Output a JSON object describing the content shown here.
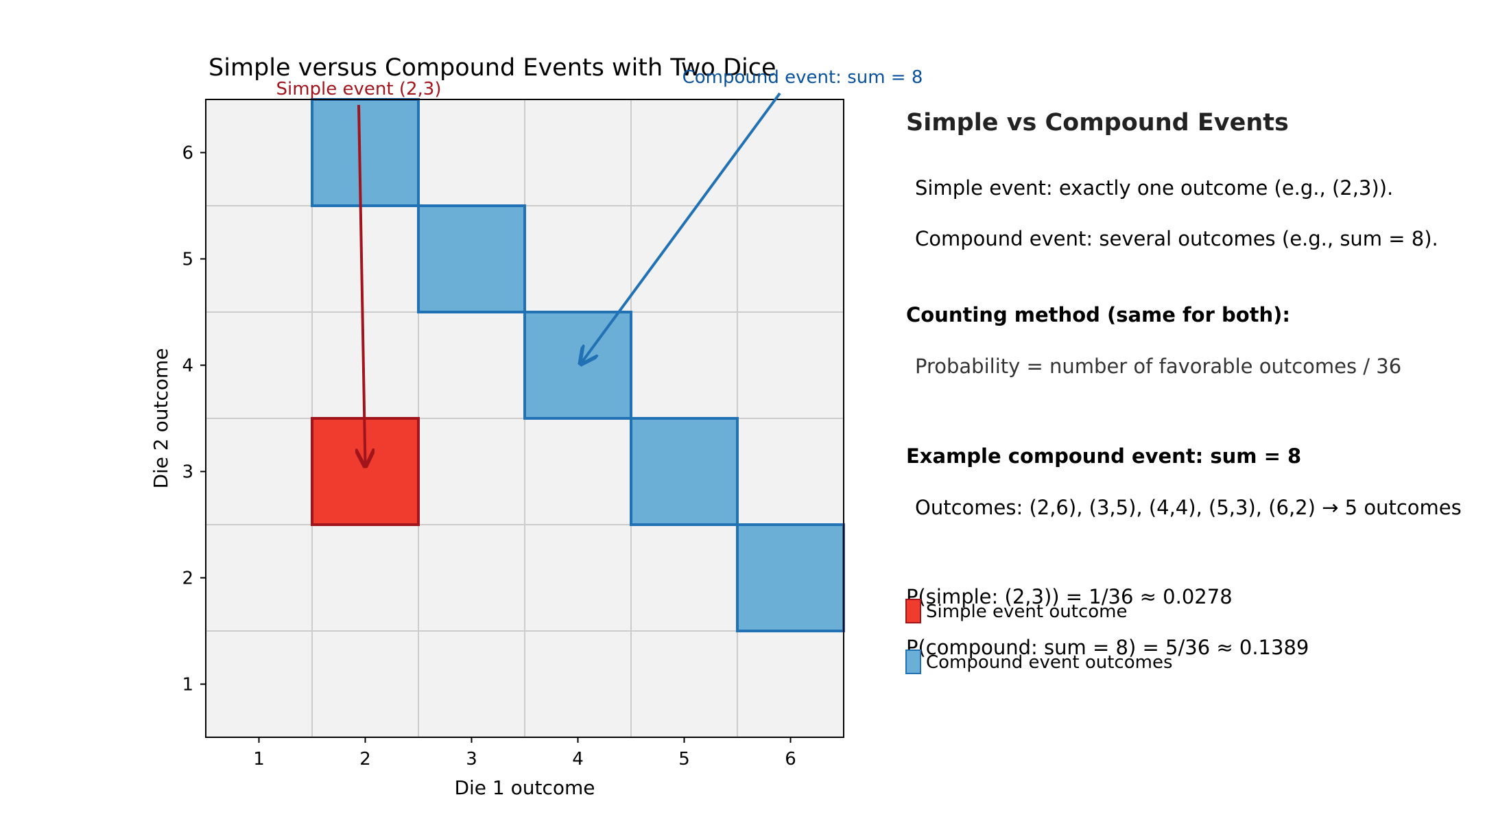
{
  "chart_data": {
    "type": "heatmap",
    "title": "Simple versus Compound Events with Two Dice",
    "xlabel": "Die 1 outcome",
    "ylabel": "Die 2 outcome",
    "x_ticks": [
      "1",
      "2",
      "3",
      "4",
      "5",
      "6"
    ],
    "y_ticks": [
      "1",
      "2",
      "3",
      "4",
      "5",
      "6"
    ],
    "xlim": [
      0.5,
      6.5
    ],
    "ylim": [
      0.5,
      6.5
    ],
    "grid": true,
    "simple_event": {
      "name": "Simple event outcome",
      "color": "#f03b2f",
      "edge_color": "#a1141c",
      "cells": [
        [
          2,
          3
        ]
      ]
    },
    "compound_event": {
      "name": "Compound event outcomes",
      "color": "#6baed6",
      "edge_color": "#2171b5",
      "cells": [
        [
          2,
          6
        ],
        [
          3,
          5
        ],
        [
          4,
          4
        ],
        [
          5,
          3
        ],
        [
          6,
          2
        ]
      ]
    },
    "annotations": [
      {
        "text": "Simple event (2,3)",
        "target": [
          2,
          3
        ],
        "color": "#a1141c"
      },
      {
        "text": "Compound event: sum = 8",
        "target": [
          4,
          4
        ],
        "color": "#08519c"
      }
    ],
    "legend": {
      "placement": "right-bottom"
    }
  },
  "panel": {
    "heading": "Simple vs Compound Events",
    "simple_def": "Simple event: exactly one outcome (e.g., (2,3)).",
    "compound_def": "Compound event: several outcomes (e.g., sum = 8).",
    "counting_heading": "Counting method (same for both):",
    "counting_formula": "Probability = number of favorable outcomes / 36",
    "example_heading": "Example compound event: sum = 8",
    "example_outcomes": "Outcomes: (2,6), (3,5), (4,4), (5,3), (6,2) → 5 outcomes",
    "p_simple": "P(simple: (2,3)) = 1/36 ≈ 0.0278",
    "p_compound": "P(compound: sum = 8) = 5/36 ≈ 0.1389"
  }
}
